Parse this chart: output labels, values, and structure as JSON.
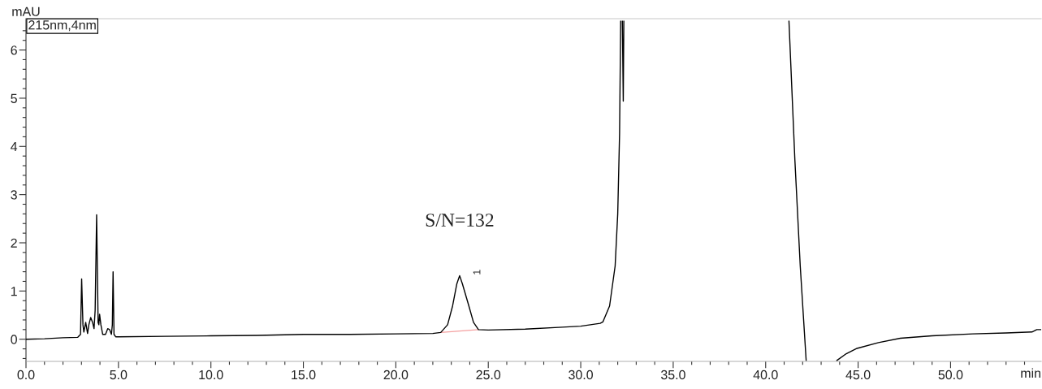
{
  "chart_data": {
    "type": "line",
    "ylabel": "mAU",
    "xlabel": "min",
    "annotations": [
      "215nm,4nm",
      {
        "text": "S/N=132",
        "x": 23.45,
        "y": 1.32
      },
      {
        "text": "1",
        "x": 23.45,
        "y": 1.32
      }
    ],
    "series": [
      {
        "color": "#000000",
        "x": [
          0,
          1,
          2,
          2.8,
          2.95,
          3.01,
          3.08,
          3.13,
          3.23,
          3.33,
          3.4,
          3.5,
          3.6,
          3.68,
          3.74,
          3.82,
          3.9,
          3.94,
          3.98,
          4.05,
          4.15,
          4.3,
          4.42,
          4.52,
          4.62,
          4.67,
          4.71,
          4.76,
          4.85,
          5,
          7.5,
          10,
          12.5,
          15,
          17.5,
          20,
          22,
          22.43,
          22.8,
          23.07,
          23.3,
          23.45,
          23.6,
          23.95,
          24.2,
          24.47,
          25,
          27,
          29,
          30,
          31.05,
          31.2,
          31.56,
          31.86,
          32.0,
          32.1,
          32.16,
          32.2,
          32.25,
          32.3,
          32.33,
          32.4,
          41.26,
          41.58,
          41.87,
          42.19,
          43,
          43.85,
          44.36,
          44.94,
          46.1,
          47.28,
          49.0,
          51.2,
          53,
          54.4,
          54.66,
          54.9
        ],
        "values": [
          0.0,
          0.01,
          0.03,
          0.04,
          0.1,
          1.25,
          0.3,
          0.15,
          0.35,
          0.12,
          0.3,
          0.45,
          0.35,
          0.22,
          0.6,
          2.58,
          0.35,
          0.3,
          0.52,
          0.3,
          0.1,
          0.1,
          0.22,
          0.2,
          0.1,
          0.3,
          1.4,
          0.1,
          0.05,
          0.05,
          0.06,
          0.07,
          0.08,
          0.1,
          0.1,
          0.11,
          0.12,
          0.14,
          0.3,
          0.69,
          1.15,
          1.32,
          1.15,
          0.69,
          0.35,
          0.2,
          0.19,
          0.21,
          0.25,
          0.27,
          0.33,
          0.36,
          0.69,
          1.52,
          2.6,
          4.27,
          6.6,
          null,
          6.6,
          4.94,
          6.6,
          null,
          6.6,
          3.72,
          1.52,
          -0.44,
          null,
          -0.44,
          -0.3,
          -0.19,
          -0.07,
          0.02,
          0.07,
          0.11,
          0.13,
          0.15,
          0.2,
          0.2
        ]
      },
      {
        "type": "line",
        "color": "#f4a0a0",
        "x": [
          22.43,
          24.47
        ],
        "values": [
          0.14,
          0.2
        ]
      }
    ],
    "xlim": [
      0,
      54.9
    ],
    "ylim": [
      -0.46,
      6.65
    ],
    "xticks": [
      {
        "value": 0,
        "label": "0.0"
      },
      {
        "value": 1,
        "label": null
      },
      {
        "value": 2,
        "label": null
      },
      {
        "value": 3,
        "label": null
      },
      {
        "value": 4,
        "label": null
      },
      {
        "value": 5,
        "label": "5.0"
      },
      {
        "value": 6,
        "label": null
      },
      {
        "value": 7,
        "label": null
      },
      {
        "value": 8,
        "label": null
      },
      {
        "value": 9,
        "label": null
      },
      {
        "value": 10,
        "label": "10.0"
      },
      {
        "value": 11,
        "label": null
      },
      {
        "value": 12,
        "label": null
      },
      {
        "value": 13,
        "label": null
      },
      {
        "value": 14,
        "label": null
      },
      {
        "value": 15,
        "label": "15.0"
      },
      {
        "value": 16,
        "label": null
      },
      {
        "value": 17,
        "label": null
      },
      {
        "value": 18,
        "label": null
      },
      {
        "value": 19,
        "label": null
      },
      {
        "value": 20,
        "label": "20.0"
      },
      {
        "value": 21,
        "label": null
      },
      {
        "value": 22,
        "label": null
      },
      {
        "value": 23,
        "label": null
      },
      {
        "value": 24,
        "label": null
      },
      {
        "value": 25,
        "label": "25.0"
      },
      {
        "value": 26,
        "label": null
      },
      {
        "value": 27,
        "label": null
      },
      {
        "value": 28,
        "label": null
      },
      {
        "value": 29,
        "label": null
      },
      {
        "value": 30,
        "label": "30.0"
      },
      {
        "value": 31,
        "label": null
      },
      {
        "value": 32,
        "label": null
      },
      {
        "value": 33,
        "label": null
      },
      {
        "value": 34,
        "label": null
      },
      {
        "value": 35,
        "label": "35.0"
      },
      {
        "value": 36,
        "label": null
      },
      {
        "value": 37,
        "label": null
      },
      {
        "value": 38,
        "label": null
      },
      {
        "value": 39,
        "label": null
      },
      {
        "value": 40,
        "label": "40.0"
      },
      {
        "value": 41,
        "label": null
      },
      {
        "value": 42,
        "label": null
      },
      {
        "value": 43,
        "label": null
      },
      {
        "value": 44,
        "label": null
      },
      {
        "value": 45,
        "label": "45.0"
      },
      {
        "value": 46,
        "label": null
      },
      {
        "value": 47,
        "label": null
      },
      {
        "value": 48,
        "label": null
      },
      {
        "value": 49,
        "label": null
      },
      {
        "value": 50,
        "label": "50.0"
      },
      {
        "value": 51,
        "label": null
      },
      {
        "value": 52,
        "label": null
      },
      {
        "value": 53,
        "label": null
      },
      {
        "value": 54,
        "label": null
      }
    ],
    "yticks": [
      {
        "value": -0.4,
        "label": null
      },
      {
        "value": -0.2,
        "label": null
      },
      0,
      {
        "value": 0.2,
        "label": null
      },
      {
        "value": 0.4,
        "label": null
      },
      {
        "value": 0.6,
        "label": null
      },
      {
        "value": 0.8,
        "label": null
      },
      1,
      {
        "value": 1.2,
        "label": null
      },
      {
        "value": 1.4,
        "label": null
      },
      {
        "value": 1.6,
        "label": null
      },
      {
        "value": 1.8,
        "label": null
      },
      2,
      {
        "value": 2.2,
        "label": null
      },
      {
        "value": 2.4,
        "label": null
      },
      {
        "value": 2.6,
        "label": null
      },
      {
        "value": 2.8,
        "label": null
      },
      3,
      {
        "value": 3.2,
        "label": null
      },
      {
        "value": 3.4,
        "label": null
      },
      {
        "value": 3.6,
        "label": null
      },
      {
        "value": 3.8,
        "label": null
      },
      4,
      {
        "value": 4.2,
        "label": null
      },
      {
        "value": 4.4,
        "label": null
      },
      {
        "value": 4.6,
        "label": null
      },
      {
        "value": 4.8,
        "label": null
      },
      5,
      {
        "value": 5.2,
        "label": null
      },
      {
        "value": 5.4,
        "label": null
      },
      {
        "value": 5.6,
        "label": null
      },
      {
        "value": 5.8,
        "label": null
      },
      6,
      {
        "value": 6.2,
        "label": null
      },
      {
        "value": 6.4,
        "label": null
      }
    ],
    "grid": false,
    "legend": false,
    "marker": "none",
    "line_style": "solid"
  }
}
